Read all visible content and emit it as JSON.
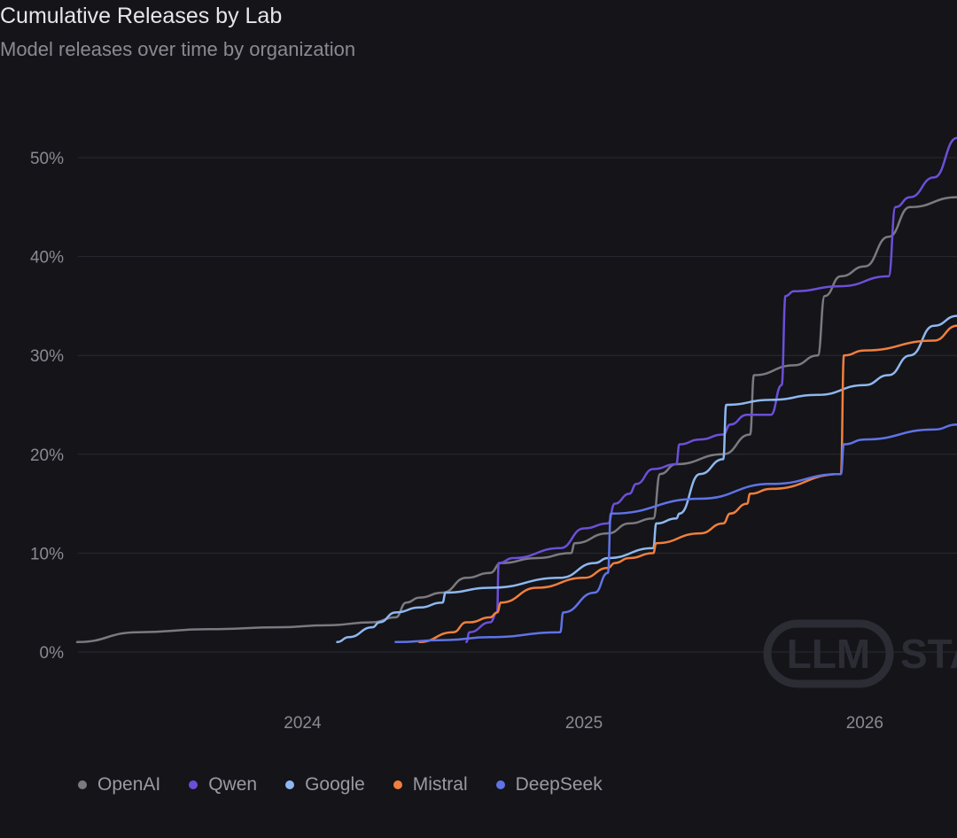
{
  "header": {
    "title": "Cumulative Releases by Lab",
    "subtitle": "Model releases over time by organization"
  },
  "watermark": {
    "text": "LLM STATS"
  },
  "chart_data": {
    "type": "line",
    "title": "Cumulative Releases by Lab",
    "subtitle": "Model releases over time by organization",
    "xlabel": "",
    "ylabel": "",
    "x_tick_labels": [
      "2024",
      "2025",
      "2026"
    ],
    "y_tick_labels": [
      "0%",
      "10%",
      "20%",
      "30%",
      "40%",
      "50%"
    ],
    "ylim": [
      0,
      50
    ],
    "xlim": [
      "2023-03-15",
      "2026-05-01"
    ],
    "grid": true,
    "legend_position": "bottom-left",
    "series": [
      {
        "name": "OpenAI",
        "color": "#7a7a80",
        "x": [
          "2023-03-14",
          "2023-06-01",
          "2023-09-01",
          "2023-12-01",
          "2024-02-01",
          "2024-04-01",
          "2024-05-01",
          "2024-05-15",
          "2024-06-01",
          "2024-07-01",
          "2024-08-01",
          "2024-09-01",
          "2024-09-15",
          "2024-11-01",
          "2024-12-15",
          "2024-12-20",
          "2025-02-01",
          "2025-03-01",
          "2025-04-01",
          "2025-04-10",
          "2025-05-01",
          "2025-07-01",
          "2025-08-05",
          "2025-08-10",
          "2025-10-01",
          "2025-11-01",
          "2025-11-10",
          "2025-12-01",
          "2026-01-01",
          "2026-02-01",
          "2026-03-01",
          "2026-05-01"
        ],
        "values": [
          1,
          2,
          2.3,
          2.5,
          2.7,
          3,
          3.5,
          5,
          5.5,
          6,
          7.5,
          8,
          9,
          9.5,
          10,
          11,
          12,
          13,
          13.5,
          18,
          19,
          20,
          22,
          28,
          29,
          30,
          36,
          38,
          39,
          42,
          45,
          46
        ]
      },
      {
        "name": "Qwen",
        "color": "#6c4fd8",
        "x": [
          "2024-08-01",
          "2024-08-05",
          "2024-09-01",
          "2024-09-10",
          "2024-09-12",
          "2024-10-01",
          "2024-12-01",
          "2025-01-01",
          "2025-02-01",
          "2025-02-10",
          "2025-03-01",
          "2025-03-10",
          "2025-04-01",
          "2025-05-01",
          "2025-05-05",
          "2025-06-01",
          "2025-07-01",
          "2025-07-10",
          "2025-08-01",
          "2025-09-01",
          "2025-09-15",
          "2025-09-20",
          "2025-10-01",
          "2025-12-01",
          "2026-02-01",
          "2026-02-10",
          "2026-03-01",
          "2026-04-01",
          "2026-05-01"
        ],
        "values": [
          1,
          2,
          3,
          4,
          9,
          9.5,
          10.5,
          12.5,
          13,
          15,
          16,
          17,
          18.5,
          19,
          21,
          21.5,
          22,
          23,
          24,
          24,
          27,
          36,
          36.5,
          37,
          38,
          45,
          46,
          48,
          52
        ]
      },
      {
        "name": "Google",
        "color": "#8eb8f0",
        "x": [
          "2024-02-15",
          "2024-03-01",
          "2024-04-01",
          "2024-04-10",
          "2024-05-01",
          "2024-06-01",
          "2024-07-01",
          "2024-07-05",
          "2024-09-01",
          "2024-12-01",
          "2025-01-15",
          "2025-02-01",
          "2025-04-01",
          "2025-04-05",
          "2025-05-01",
          "2025-05-05",
          "2025-06-01",
          "2025-07-01",
          "2025-07-05",
          "2025-09-01",
          "2025-11-01",
          "2026-01-01",
          "2026-02-01",
          "2026-03-01",
          "2026-04-01",
          "2026-05-01"
        ],
        "values": [
          1,
          1.5,
          2.5,
          3,
          4,
          4.5,
          5,
          6,
          6.5,
          7.5,
          9,
          9.5,
          10.5,
          13,
          13.5,
          14,
          18,
          19.5,
          25,
          25.5,
          26,
          27,
          28,
          30,
          33,
          34
        ]
      },
      {
        "name": "Mistral",
        "color": "#f07f3c",
        "x": [
          "2024-06-01",
          "2024-07-15",
          "2024-08-01",
          "2024-08-05",
          "2024-09-01",
          "2024-09-10",
          "2024-09-15",
          "2024-11-01",
          "2025-01-01",
          "2025-02-01",
          "2025-02-10",
          "2025-03-01",
          "2025-04-01",
          "2025-04-05",
          "2025-06-01",
          "2025-07-01",
          "2025-07-10",
          "2025-08-01",
          "2025-08-05",
          "2025-09-01",
          "2025-12-01",
          "2025-12-05",
          "2026-01-01",
          "2026-04-01",
          "2026-05-01"
        ],
        "values": [
          1,
          2,
          3,
          3,
          3.5,
          4,
          5,
          6.5,
          7.5,
          8.5,
          9,
          9.5,
          10,
          11,
          12,
          13,
          14,
          15,
          16,
          16.5,
          18,
          30,
          30.5,
          31.5,
          33
        ]
      },
      {
        "name": "DeepSeek",
        "color": "#5f73e6",
        "x": [
          "2024-05-01",
          "2024-07-01",
          "2024-09-01",
          "2024-12-01",
          "2024-12-05",
          "2025-01-15",
          "2025-02-01",
          "2025-02-05",
          "2025-06-01",
          "2025-09-01",
          "2025-12-01",
          "2025-12-05",
          "2026-01-01",
          "2026-04-01",
          "2026-05-01"
        ],
        "values": [
          1,
          1.2,
          1.5,
          2,
          4,
          6,
          8,
          14,
          15.5,
          17,
          18,
          21,
          21.5,
          22.5,
          23
        ]
      }
    ]
  }
}
